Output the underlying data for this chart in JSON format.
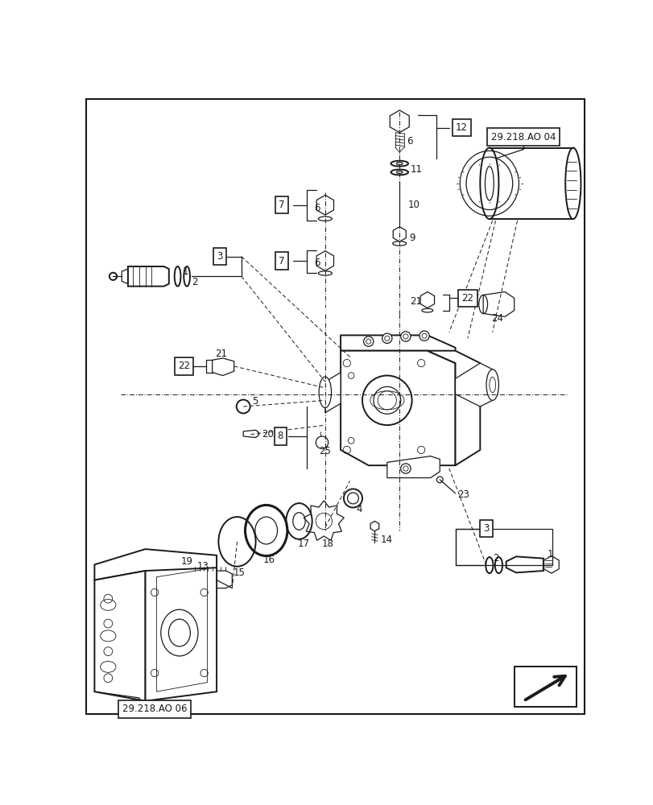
{
  "bg_color": "#ffffff",
  "line_color": "#1a1a1a",
  "fig_width": 8.12,
  "fig_height": 10.0,
  "labels": {
    "ref_ao04": "29.218.AO 04",
    "ref_ao06": "29.218.AO 06"
  }
}
